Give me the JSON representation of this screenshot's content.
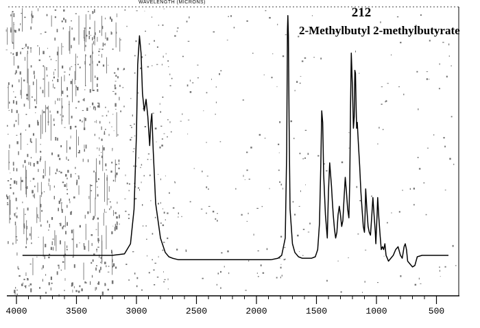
{
  "chart_data": {
    "type": "line",
    "compound_number": "212",
    "title": "2-Methylbutyl 2-methylbutyrate",
    "top_axis_label": "WAVELENGTH (MICRONS)",
    "xlabel": "",
    "ylabel": "",
    "x_axis": "wavenumber",
    "x_reversed": true,
    "xlim": [
      4000,
      400
    ],
    "ylim": [
      0,
      100
    ],
    "x_ticks": [
      4000,
      3500,
      3000,
      2500,
      2000,
      1500,
      1000,
      500
    ],
    "x_tick_labels": [
      "4000",
      "3500",
      "3000",
      "2500",
      "2000",
      "1500",
      "1000",
      "500"
    ],
    "grid": false,
    "legend": "none",
    "line_color": "#000000",
    "noise_color": "#000000",
    "series": [
      {
        "x": [
          3950,
          3800,
          3650,
          3500,
          3350,
          3200,
          3100,
          3050,
          3020,
          3000,
          2990,
          2975,
          2962,
          2950,
          2935,
          2920,
          2905,
          2890,
          2880,
          2872,
          2860,
          2840,
          2800,
          2760,
          2730,
          2700,
          2650,
          2500,
          2300,
          2100,
          1950,
          1880,
          1820,
          1790,
          1760,
          1748,
          1742,
          1738,
          1734,
          1728,
          1720,
          1700,
          1680,
          1650,
          1620,
          1580,
          1540,
          1510,
          1490,
          1475,
          1464,
          1456,
          1448,
          1440,
          1425,
          1410,
          1400,
          1390,
          1382,
          1375,
          1368,
          1360,
          1350,
          1340,
          1330,
          1320,
          1310,
          1300,
          1290,
          1280,
          1270,
          1260,
          1250,
          1240,
          1230,
          1222,
          1216,
          1210,
          1200,
          1192,
          1185,
          1180,
          1175,
          1170,
          1165,
          1160,
          1150,
          1140,
          1130,
          1120,
          1110,
          1100,
          1095,
          1090,
          1080,
          1070,
          1060,
          1050,
          1040,
          1030,
          1020,
          1010,
          1005,
          995,
          990,
          980,
          970,
          960,
          950,
          940,
          930,
          920,
          910,
          900,
          880,
          860,
          840,
          820,
          800,
          785,
          770,
          760,
          750,
          740,
          720,
          700,
          680,
          660,
          620,
          560,
          500,
          450,
          400
        ],
        "y": [
          14,
          14,
          14,
          14,
          14,
          14,
          14.5,
          18,
          30,
          56,
          80,
          90,
          84,
          70,
          64,
          68,
          62,
          52,
          60,
          63,
          50,
          32,
          20,
          15,
          13.5,
          13,
          12.5,
          12.5,
          12.5,
          12.5,
          12.5,
          12.5,
          13,
          14,
          20,
          50,
          92,
          97,
          90,
          60,
          30,
          18,
          15,
          13.5,
          13,
          13,
          13,
          13.5,
          16,
          25,
          45,
          64,
          60,
          42,
          28,
          20,
          36,
          46,
          42,
          38,
          33,
          28,
          23,
          20,
          22,
          28,
          31,
          28,
          24,
          26,
          34,
          41,
          36,
          30,
          27,
          40,
          66,
          84,
          72,
          58,
          62,
          78,
          77,
          66,
          58,
          60,
          52,
          45,
          36,
          30,
          24,
          22,
          28,
          37,
          30,
          24,
          22,
          21,
          27,
          34,
          28,
          22,
          18,
          28,
          34,
          27,
          21,
          16,
          17,
          16,
          18,
          14,
          13,
          12,
          13,
          14,
          16,
          17,
          14,
          13,
          17,
          18,
          16,
          12,
          11,
          10,
          10.5,
          13.5,
          14,
          14,
          14,
          14,
          14
        ]
      }
    ]
  }
}
